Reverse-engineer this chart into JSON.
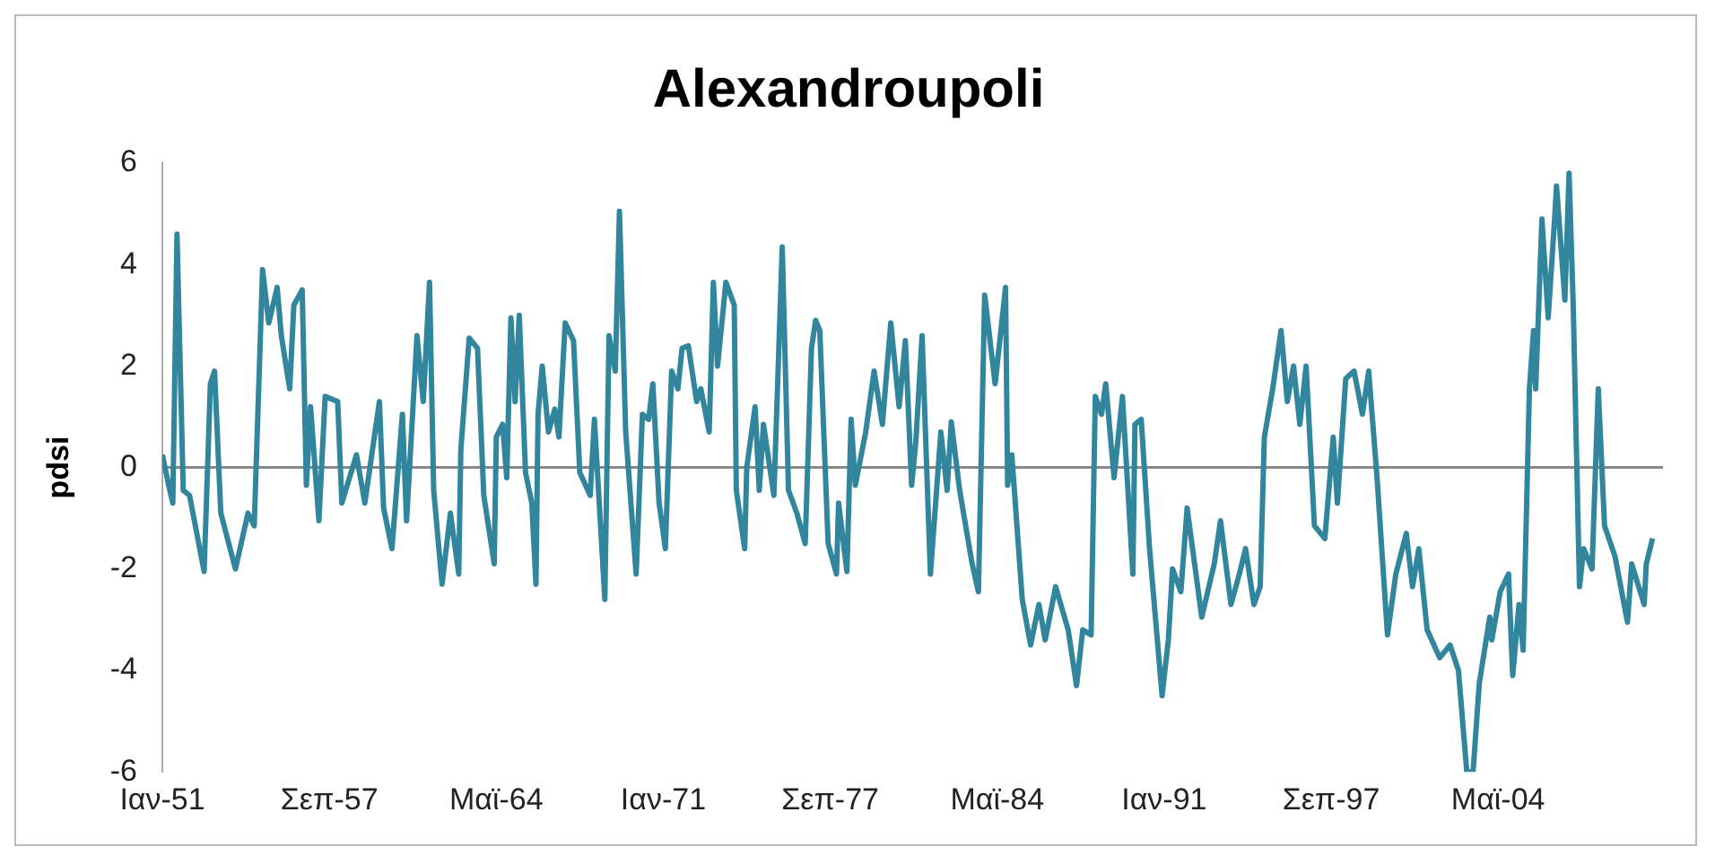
{
  "chart_data": {
    "type": "line",
    "title": "Alexandroupoli",
    "ylabel": "pdsi",
    "x": [
      "1951-01",
      "1951-04",
      "1951-06",
      "1951-08",
      "1951-11",
      "1952-02",
      "1952-09",
      "1952-12",
      "1953-02",
      "1953-05",
      "1953-12",
      "1954-06",
      "1954-09",
      "1955-01",
      "1955-04",
      "1955-08",
      "1955-10",
      "1956-02",
      "1956-04",
      "1956-08",
      "1956-10",
      "1956-12",
      "1957-04",
      "1957-07",
      "1958-01",
      "1958-03",
      "1958-10",
      "1959-02",
      "1959-09",
      "1959-11",
      "1960-03",
      "1960-08",
      "1960-10",
      "1961-03",
      "1961-06",
      "1961-09",
      "1961-11",
      "1962-03",
      "1962-07",
      "1962-11",
      "1962-12",
      "1963-04",
      "1963-08",
      "1963-11",
      "1964-04",
      "1964-05",
      "1964-08",
      "1964-10",
      "1964-12",
      "1965-02",
      "1965-04",
      "1965-07",
      "1965-10",
      "1965-12",
      "1966-01",
      "1966-03",
      "1966-06",
      "1966-09",
      "1966-11",
      "1967-02",
      "1967-06",
      "1967-09",
      "1968-02",
      "1968-04",
      "1968-09",
      "1968-11",
      "1969-02",
      "1969-04",
      "1969-07",
      "1969-12",
      "1970-03",
      "1970-06",
      "1970-08",
      "1970-11",
      "1971-02",
      "1971-05",
      "1971-08",
      "1971-10",
      "1972-01",
      "1972-05",
      "1972-07",
      "1972-11",
      "1973-01",
      "1973-03",
      "1973-07",
      "1973-11",
      "1973-12",
      "1974-04",
      "1974-05",
      "1974-09",
      "1974-11",
      "1975-01",
      "1975-06",
      "1975-10",
      "1976-01",
      "1976-05",
      "1976-09",
      "1976-12",
      "1977-02",
      "1977-04",
      "1977-08",
      "1977-12",
      "1978-01",
      "1978-05",
      "1978-07",
      "1978-09",
      "1979-02",
      "1979-06",
      "1979-10",
      "1980-02",
      "1980-06",
      "1980-09",
      "1980-12",
      "1981-02",
      "1981-05",
      "1981-09",
      "1982-02",
      "1982-05",
      "1982-07",
      "1982-11",
      "1983-05",
      "1983-08",
      "1983-11",
      "1984-04",
      "1984-09",
      "1984-10",
      "1984-12",
      "1985-05",
      "1985-09",
      "1986-01",
      "1986-04",
      "1986-09",
      "1987-03",
      "1987-07",
      "1987-10",
      "1988-02",
      "1988-04",
      "1988-07",
      "1988-09",
      "1989-01",
      "1989-05",
      "1989-10",
      "1989-11",
      "1990-02",
      "1990-06",
      "1990-12",
      "1991-03",
      "1991-05",
      "1991-09",
      "1991-12",
      "1992-07",
      "1993-01",
      "1993-04",
      "1993-09",
      "1994-01",
      "1994-04",
      "1994-08",
      "1994-11",
      "1995-01",
      "1995-05",
      "1995-09",
      "1995-12",
      "1996-03",
      "1996-06",
      "1996-09",
      "1997-01",
      "1997-06",
      "1997-10",
      "1997-12",
      "1998-04",
      "1998-08",
      "1998-12",
      "1999-03",
      "1999-07",
      "1999-12",
      "2000-04",
      "2000-09",
      "2000-12",
      "2001-03",
      "2001-07",
      "2002-01",
      "2002-06",
      "2002-10",
      "2003-02",
      "2003-05",
      "2003-08",
      "2004-01",
      "2004-02",
      "2004-06",
      "2004-10",
      "2004-12",
      "2005-03",
      "2005-05",
      "2005-08",
      "2005-10",
      "2005-11",
      "2006-02",
      "2006-05",
      "2006-08",
      "2006-09",
      "2007-01",
      "2007-03",
      "2007-05",
      "2007-08",
      "2007-10",
      "2008-02",
      "2008-05",
      "2008-08",
      "2009-01",
      "2009-07",
      "2009-09",
      "2010-03",
      "2010-04",
      "2010-07"
    ],
    "series": [
      {
        "color": "#31859c",
        "values": [
          0.25,
          -0.35,
          -0.7,
          4.6,
          -0.45,
          -0.55,
          -2.05,
          1.65,
          1.9,
          -0.9,
          -2.0,
          -0.9,
          -1.15,
          3.9,
          2.85,
          3.55,
          2.6,
          1.55,
          3.2,
          3.5,
          -0.35,
          1.2,
          -1.05,
          1.4,
          1.3,
          -0.7,
          0.25,
          -0.7,
          1.3,
          -0.8,
          -1.6,
          1.05,
          -1.05,
          2.6,
          1.3,
          3.65,
          -0.45,
          -2.3,
          -0.9,
          -2.1,
          0.35,
          2.55,
          2.35,
          -0.55,
          -1.9,
          0.6,
          0.85,
          -0.2,
          2.95,
          1.3,
          3.0,
          -0.1,
          -0.7,
          -2.3,
          1.05,
          2.0,
          0.7,
          1.15,
          0.6,
          2.85,
          2.5,
          -0.1,
          -0.55,
          0.95,
          -2.6,
          2.6,
          1.9,
          5.05,
          0.7,
          -2.1,
          1.05,
          0.95,
          1.65,
          -0.7,
          -1.6,
          1.9,
          1.55,
          2.35,
          2.4,
          1.3,
          1.55,
          0.7,
          3.65,
          2.0,
          3.65,
          3.2,
          -0.45,
          -1.6,
          0.0,
          1.2,
          -0.45,
          0.85,
          -0.55,
          4.35,
          -0.45,
          -0.9,
          -1.5,
          2.35,
          2.9,
          2.7,
          -1.5,
          -2.1,
          -0.7,
          -2.05,
          0.95,
          -0.35,
          0.7,
          1.9,
          0.85,
          2.85,
          1.2,
          2.5,
          -0.35,
          0.5,
          2.6,
          -2.1,
          0.7,
          -0.45,
          0.9,
          -0.45,
          -1.9,
          -2.45,
          3.4,
          1.65,
          3.55,
          -0.35,
          0.25,
          -2.6,
          -3.5,
          -2.7,
          -3.4,
          -2.35,
          -3.2,
          -4.3,
          -3.2,
          -3.3,
          1.4,
          1.05,
          1.65,
          -0.2,
          1.4,
          -2.1,
          0.85,
          0.95,
          -1.6,
          -4.5,
          -3.4,
          -2.0,
          -2.45,
          -0.8,
          -2.95,
          -1.9,
          -1.05,
          -2.7,
          -2.1,
          -1.6,
          -2.7,
          -2.35,
          0.6,
          1.55,
          2.7,
          1.3,
          2.0,
          0.85,
          2.0,
          -1.15,
          -1.4,
          0.6,
          -0.7,
          1.75,
          1.9,
          1.05,
          1.9,
          -0.2,
          -3.3,
          -2.1,
          -1.3,
          -2.35,
          -1.6,
          -3.2,
          -3.75,
          -3.5,
          -4.0,
          -6.0,
          -6.0,
          -4.25,
          -2.95,
          -3.4,
          -2.45,
          -2.1,
          -4.1,
          -2.7,
          -3.6,
          1.55,
          2.7,
          1.55,
          4.9,
          2.95,
          4.85,
          5.55,
          3.3,
          5.8,
          3.2,
          -2.35,
          -1.6,
          -2.0,
          1.55,
          -1.15,
          -1.75,
          -3.05,
          -1.9,
          -2.7,
          -1.9,
          -1.4
        ]
      }
    ],
    "xlim": [
      "1951-01",
      "2010-12"
    ],
    "xticks": [
      {
        "value": "1951-01",
        "label": "Ιαν-51"
      },
      {
        "value": "1957-09",
        "label": "Σεπ-57"
      },
      {
        "value": "1964-05",
        "label": "Μαϊ-64"
      },
      {
        "value": "1971-01",
        "label": "Ιαν-71"
      },
      {
        "value": "1977-09",
        "label": "Σεπ-77"
      },
      {
        "value": "1984-05",
        "label": "Μαϊ-84"
      },
      {
        "value": "1991-01",
        "label": "Ιαν-91"
      },
      {
        "value": "1997-09",
        "label": "Σεπ-97"
      },
      {
        "value": "2004-05",
        "label": "Μαϊ-04"
      }
    ],
    "ylim": [
      -6,
      6
    ],
    "yticks": [
      -6,
      -4,
      -2,
      0,
      2,
      4,
      6
    ],
    "ref_lines": [
      {
        "axis": "y",
        "value": 0,
        "color": "#888888"
      }
    ],
    "grid": false,
    "legend": false,
    "marker": "none",
    "line_style": "solid"
  }
}
